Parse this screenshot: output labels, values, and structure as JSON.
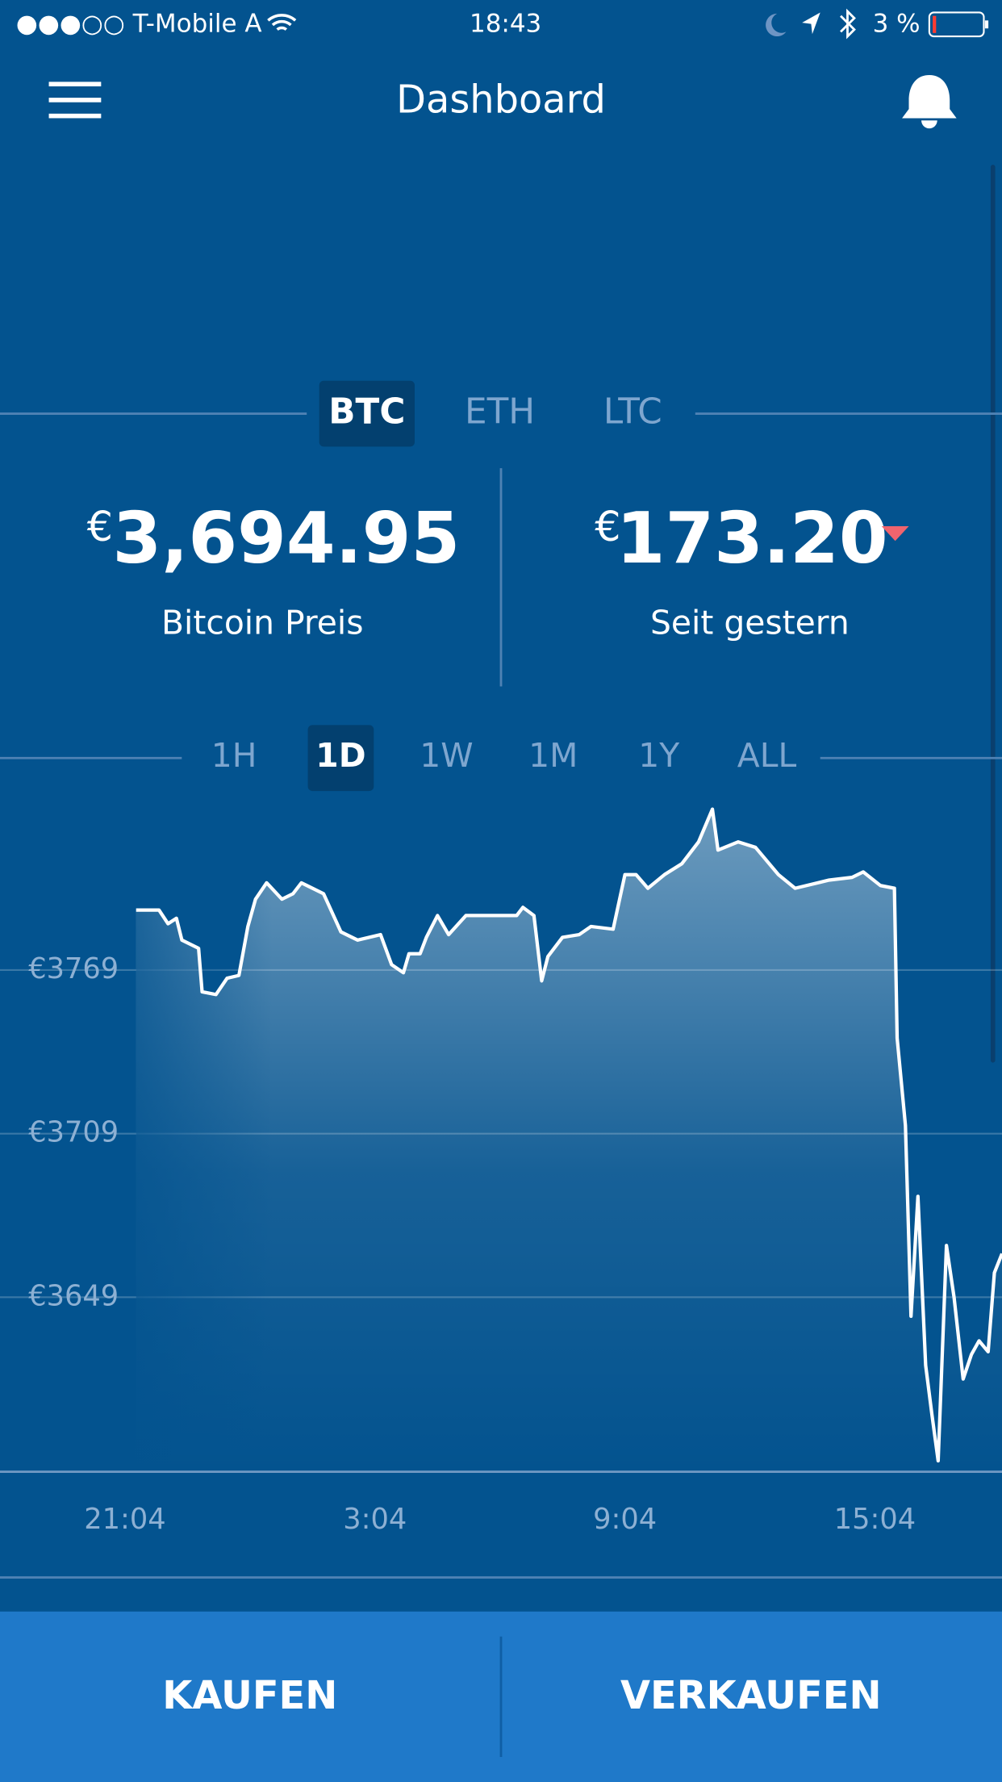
{
  "status_bar": {
    "carrier": "●●●○○ T-Mobile A",
    "time": "18:43",
    "battery": "3 %"
  },
  "header": {
    "title": "Dashboard"
  },
  "coin_tabs": {
    "items": [
      "BTC",
      "ETH",
      "LTC"
    ],
    "selected": "BTC"
  },
  "price": {
    "currency": "€",
    "amount": "3,694.95",
    "label": "Bitcoin Preis"
  },
  "change": {
    "currency": "€",
    "amount": "173.20",
    "label": "Seit gestern"
  },
  "range_tabs": {
    "items": [
      "1H",
      "1D",
      "1W",
      "1M",
      "1Y",
      "ALL"
    ],
    "selected": "1D"
  },
  "chart_data": {
    "type": "line",
    "color": "#ffffff",
    "x": [
      "21:20",
      "21:53",
      "22:06",
      "22:18",
      "22:26",
      "22:50",
      "22:55",
      "23:15",
      "23:31",
      "23:48",
      "0:01",
      "0:12",
      "0:28",
      "0:50",
      "1:06",
      "1:18",
      "1:50",
      "2:15",
      "2:39",
      "3:12",
      "3:28",
      "3:45",
      "3:53",
      "4:09",
      "4:18",
      "4:34",
      "4:50",
      "5:15",
      "6:28",
      "6:37",
      "6:53",
      "7:04",
      "7:13",
      "7:34",
      "7:58",
      "8:15",
      "8:47",
      "9:04",
      "9:20",
      "9:37",
      "10:01",
      "10:26",
      "10:50",
      "11:10",
      "11:18",
      "11:47",
      "12:12",
      "12:45",
      "13:09",
      "13:58",
      "14:31",
      "14:47",
      "15:12",
      "15:32",
      "15:36",
      "15:48",
      "15:56",
      "16:06",
      "16:17",
      "16:26",
      "16:35",
      "16:47",
      "16:58",
      "17:11",
      "17:23",
      "17:34",
      "17:47",
      "17:56",
      "18:07"
    ],
    "values": [
      3791,
      3791,
      3786,
      3788,
      3780,
      3777,
      3761,
      3760,
      3766,
      3767,
      3785,
      3795,
      3801,
      3795,
      3797,
      3801,
      3797,
      3783,
      3780,
      3782,
      3771,
      3768,
      3775,
      3775,
      3781,
      3789,
      3782,
      3789,
      3789,
      3792,
      3789,
      3765,
      3774,
      3781,
      3782,
      3785,
      3784,
      3804,
      3804,
      3799,
      3804,
      3808,
      3816,
      3828,
      3813,
      3816,
      3814,
      3804,
      3799,
      3802,
      3803,
      3805,
      3800,
      3799,
      3744,
      3712,
      3642,
      3686,
      3624,
      3606,
      3589,
      3668,
      3649,
      3619,
      3628,
      3633,
      3629,
      3658,
      3665
    ],
    "xlim": [
      "18:04",
      "18:07"
    ],
    "ylim": [
      3585,
      3833
    ],
    "xticks": [
      "21:04",
      "3:04",
      "9:04",
      "15:04"
    ],
    "yticks": [
      {
        "value": 3649,
        "label": "€3649"
      },
      {
        "value": 3709,
        "label": "€3709"
      },
      {
        "value": 3769,
        "label": "€3769"
      }
    ],
    "grid": true
  },
  "actions": {
    "buy": "KAUFEN",
    "sell": "VERKAUFEN"
  }
}
